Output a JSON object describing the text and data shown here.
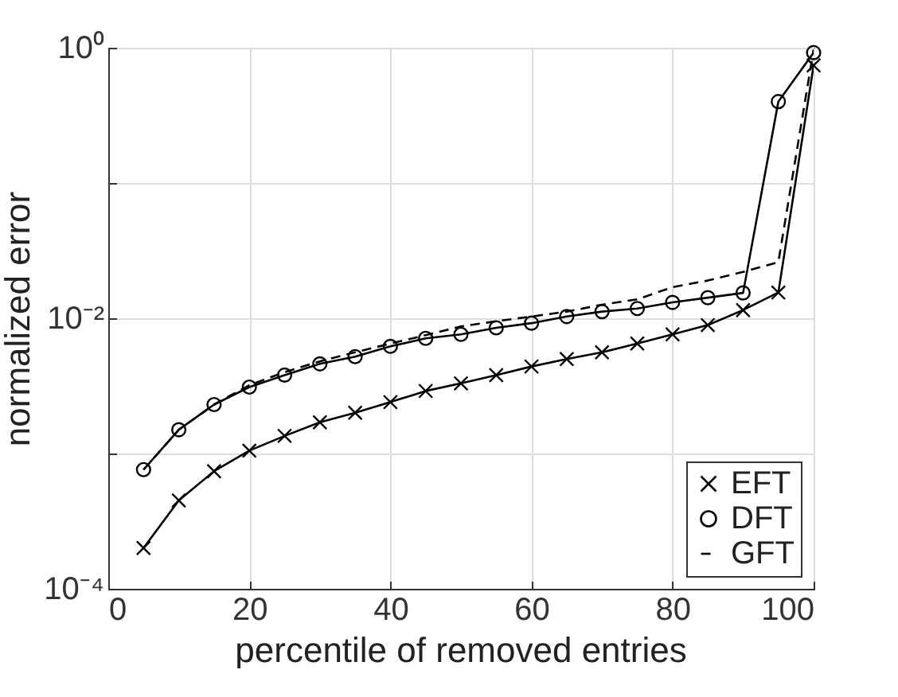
{
  "chart_data": {
    "type": "line",
    "xlabel": "percentile of removed entries",
    "ylabel": "normalized error",
    "x": [
      5,
      10,
      15,
      20,
      25,
      30,
      35,
      40,
      45,
      50,
      55,
      60,
      65,
      70,
      75,
      80,
      85,
      90,
      95,
      100
    ],
    "series": [
      {
        "name": "EFT",
        "color": "#000000",
        "marker": "cross",
        "line_style": "solid",
        "values": [
          0.0002,
          0.00045,
          0.00074,
          0.00105,
          0.00135,
          0.0017,
          0.002,
          0.0024,
          0.0029,
          0.0033,
          0.0038,
          0.0044,
          0.005,
          0.0056,
          0.0065,
          0.0076,
          0.0089,
          0.0115,
          0.0155,
          0.74
        ]
      },
      {
        "name": "DFT",
        "color": "#000000",
        "marker": "circle",
        "line_style": "solid",
        "values": [
          0.00076,
          0.0015,
          0.0023,
          0.0031,
          0.0038,
          0.0046,
          0.0052,
          0.0062,
          0.0071,
          0.0076,
          0.0085,
          0.0092,
          0.0103,
          0.0112,
          0.0118,
          0.0131,
          0.0142,
          0.0154,
          0.4,
          0.92
        ]
      },
      {
        "name": "GFT",
        "color": "#000000",
        "marker": "none",
        "line_style": "dashed",
        "values": [
          0.00076,
          0.0015,
          0.0023,
          0.0032,
          0.004,
          0.0048,
          0.0056,
          0.0065,
          0.0075,
          0.0087,
          0.0095,
          0.0103,
          0.0112,
          0.0126,
          0.0138,
          0.017,
          0.019,
          0.022,
          0.026,
          0.97
        ]
      }
    ],
    "log": "y",
    "xlim": [
      0,
      100
    ],
    "xticks": [
      0,
      20,
      40,
      60,
      80,
      100
    ],
    "ylim": [
      0.0001,
      1
    ],
    "yticks": [
      {
        "value": 0.0001,
        "label": "10⁻⁴"
      },
      {
        "value": 0.001,
        "label": null
      },
      {
        "value": 0.01,
        "label": "10⁻²"
      },
      {
        "value": 0.1,
        "label": null
      },
      {
        "value": 1,
        "label": "10⁰"
      }
    ],
    "grid": true,
    "legend": "bottom right"
  }
}
